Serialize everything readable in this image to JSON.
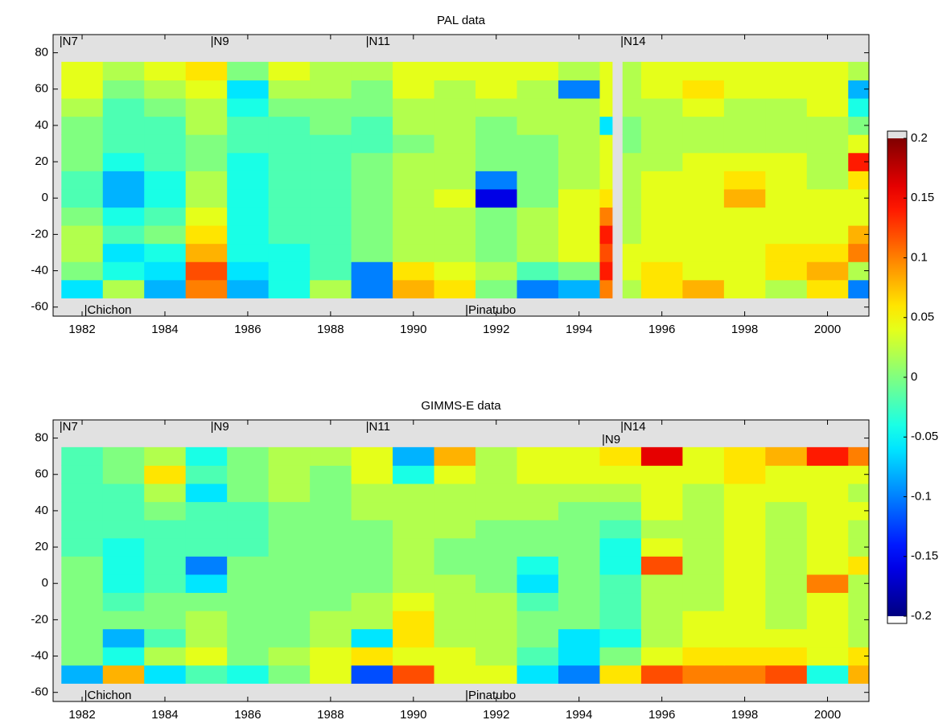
{
  "chart_data": [
    {
      "type": "heatmap",
      "title": "PAL data",
      "x_edges": [
        1981.5,
        1982.5,
        1983.5,
        1984.5,
        1985.5,
        1986.5,
        1987.5,
        1988.5,
        1989.5,
        1990.5,
        1991.5,
        1992.5,
        1993.5,
        1994.5,
        1994.8,
        1995.05,
        1995.5,
        1996.5,
        1997.5,
        1998.5,
        1999.5,
        2000.5,
        2001
      ],
      "y_edges": [
        -55,
        -45,
        -35,
        -25,
        -15,
        -5,
        5,
        15,
        25,
        35,
        45,
        55,
        65,
        75
      ],
      "values": [
        [
          -0.06,
          0.02,
          -0.08,
          0.1,
          -0.08,
          -0.04,
          0.02,
          -0.1,
          0.08,
          0.06,
          0.0,
          -0.1,
          -0.08,
          0.1,
          null,
          0.02,
          0.06,
          0.08,
          0.04,
          0.02,
          0.06,
          -0.1
        ],
        [
          0.0,
          -0.04,
          -0.06,
          0.12,
          -0.06,
          -0.04,
          -0.02,
          -0.1,
          0.06,
          0.04,
          0.02,
          -0.02,
          0.0,
          0.14,
          null,
          0.04,
          0.06,
          0.04,
          0.04,
          0.06,
          0.08,
          0.02
        ],
        [
          0.02,
          -0.06,
          -0.04,
          0.08,
          -0.04,
          -0.04,
          -0.02,
          0.0,
          0.02,
          0.02,
          0.0,
          0.02,
          0.04,
          0.12,
          null,
          0.04,
          0.04,
          0.04,
          0.04,
          0.06,
          0.06,
          0.1
        ],
        [
          0.02,
          -0.02,
          0.0,
          0.06,
          -0.04,
          -0.02,
          -0.02,
          0.0,
          0.02,
          0.02,
          0.0,
          0.02,
          0.04,
          0.14,
          null,
          0.02,
          0.04,
          0.04,
          0.04,
          0.04,
          0.04,
          0.08
        ],
        [
          0.0,
          -0.04,
          -0.02,
          0.04,
          -0.04,
          -0.02,
          -0.02,
          0.0,
          0.02,
          0.02,
          0.0,
          0.02,
          0.04,
          0.1,
          null,
          0.02,
          0.04,
          0.04,
          0.04,
          0.04,
          0.04,
          0.04
        ],
        [
          -0.02,
          -0.08,
          -0.04,
          0.02,
          -0.04,
          -0.02,
          -0.02,
          0.0,
          0.02,
          0.04,
          -0.16,
          0.0,
          0.04,
          0.06,
          null,
          0.02,
          0.04,
          0.04,
          0.08,
          0.04,
          0.04,
          0.04
        ],
        [
          -0.02,
          -0.08,
          -0.04,
          0.02,
          -0.04,
          -0.02,
          -0.02,
          0.0,
          0.02,
          0.02,
          -0.1,
          0.0,
          0.02,
          0.04,
          null,
          0.02,
          0.04,
          0.04,
          0.06,
          0.04,
          0.02,
          0.06
        ],
        [
          0.0,
          -0.04,
          -0.02,
          0.0,
          -0.04,
          -0.02,
          -0.02,
          0.0,
          0.02,
          0.02,
          0.0,
          0.0,
          0.02,
          0.04,
          null,
          0.02,
          0.02,
          0.04,
          0.04,
          0.04,
          0.02,
          0.14
        ],
        [
          0.0,
          -0.02,
          -0.02,
          0.0,
          -0.02,
          -0.02,
          -0.02,
          -0.02,
          0.0,
          0.02,
          0.0,
          0.0,
          0.02,
          0.04,
          null,
          0.0,
          0.02,
          0.02,
          0.02,
          0.02,
          0.02,
          0.04
        ],
        [
          0.0,
          -0.02,
          -0.02,
          0.02,
          -0.02,
          -0.02,
          0.0,
          -0.02,
          0.02,
          0.02,
          0.0,
          0.02,
          0.02,
          -0.06,
          null,
          0.0,
          0.02,
          0.02,
          0.02,
          0.02,
          0.02,
          0.0
        ],
        [
          0.02,
          -0.02,
          0.0,
          0.02,
          -0.04,
          0.0,
          0.0,
          0.0,
          0.02,
          0.02,
          0.02,
          0.02,
          0.02,
          0.04,
          null,
          0.02,
          0.02,
          0.04,
          0.02,
          0.02,
          0.04,
          -0.04
        ],
        [
          0.04,
          0.0,
          0.02,
          0.04,
          -0.06,
          0.02,
          0.02,
          0.0,
          0.04,
          0.02,
          0.04,
          0.02,
          -0.1,
          0.04,
          null,
          0.02,
          0.04,
          0.06,
          0.04,
          0.04,
          0.04,
          -0.08
        ],
        [
          0.04,
          0.02,
          0.04,
          0.06,
          0.0,
          0.04,
          0.02,
          0.02,
          0.04,
          0.04,
          0.04,
          0.04,
          0.02,
          0.04,
          null,
          0.02,
          0.04,
          0.04,
          0.04,
          0.04,
          0.04,
          0.02
        ]
      ],
      "xlim": [
        1981.3,
        2001
      ],
      "ylim": [
        -65,
        90
      ],
      "xticks": [
        1982,
        1984,
        1986,
        1988,
        1990,
        1992,
        1994,
        1996,
        1998,
        2000
      ],
      "yticks": [
        -60,
        -40,
        -20,
        0,
        20,
        40,
        60,
        80
      ],
      "clim": [
        -0.2,
        0.2
      ],
      "cticks": [
        0.2,
        0.15,
        0.1,
        0.05,
        0,
        -0.05,
        -0.1,
        -0.15,
        -0.2
      ],
      "annotations": [
        {
          "text": "|N7",
          "x": 1981.45,
          "y": 86
        },
        {
          "text": "|N9",
          "x": 1985.1,
          "y": 86
        },
        {
          "text": "|N11",
          "x": 1988.85,
          "y": 86
        },
        {
          "text": "|N14",
          "x": 1995.0,
          "y": 86
        },
        {
          "text": "|Chichon",
          "x": 1982.05,
          "y": -62
        },
        {
          "text": "|Pinatubo",
          "x": 1991.25,
          "y": -62
        }
      ]
    },
    {
      "type": "heatmap",
      "title": "GIMMS-E data",
      "x_edges": [
        1981.5,
        1982.5,
        1983.5,
        1984.5,
        1985.5,
        1986.5,
        1987.5,
        1988.5,
        1989.5,
        1990.5,
        1991.5,
        1992.5,
        1993.5,
        1994.5,
        1995.5,
        1996.5,
        1997.5,
        1998.5,
        1999.5,
        2000.5,
        2001
      ],
      "y_edges": [
        -55,
        -45,
        -35,
        -25,
        -15,
        -5,
        5,
        15,
        25,
        35,
        45,
        55,
        65,
        75
      ],
      "values": [
        [
          -0.08,
          0.08,
          -0.06,
          -0.02,
          -0.04,
          0.0,
          0.04,
          -0.12,
          0.12,
          0.04,
          0.04,
          -0.06,
          -0.1,
          0.06,
          0.12,
          0.1,
          0.1,
          0.12,
          -0.04,
          0.08
        ],
        [
          0.0,
          -0.04,
          0.02,
          0.04,
          0.0,
          0.02,
          0.04,
          0.06,
          0.04,
          0.04,
          0.02,
          -0.02,
          -0.06,
          0.0,
          0.04,
          0.06,
          0.06,
          0.06,
          0.04,
          0.06
        ],
        [
          0.0,
          -0.08,
          -0.02,
          0.02,
          0.0,
          0.0,
          0.02,
          -0.06,
          0.06,
          0.02,
          0.02,
          0.0,
          -0.06,
          -0.04,
          0.02,
          0.04,
          0.04,
          0.04,
          0.04,
          0.02
        ],
        [
          0.0,
          0.0,
          0.0,
          0.02,
          0.0,
          0.0,
          0.02,
          0.02,
          0.06,
          0.02,
          0.02,
          0.0,
          0.0,
          -0.02,
          0.02,
          0.04,
          0.04,
          0.02,
          0.04,
          0.02
        ],
        [
          0.0,
          -0.02,
          0.0,
          0.0,
          0.0,
          0.0,
          0.0,
          0.02,
          0.04,
          0.02,
          0.02,
          -0.02,
          0.0,
          -0.02,
          0.02,
          0.02,
          0.04,
          0.02,
          0.04,
          0.02
        ],
        [
          0.0,
          -0.04,
          -0.02,
          -0.06,
          0.0,
          0.0,
          0.0,
          0.0,
          0.02,
          0.02,
          0.0,
          -0.06,
          0.0,
          -0.02,
          0.02,
          0.02,
          0.04,
          0.02,
          0.1,
          0.02
        ],
        [
          0.0,
          -0.04,
          -0.02,
          -0.1,
          0.0,
          0.0,
          0.0,
          0.0,
          0.02,
          0.0,
          0.0,
          -0.04,
          0.0,
          -0.04,
          0.12,
          0.02,
          0.04,
          0.02,
          0.04,
          0.06
        ],
        [
          -0.02,
          -0.04,
          -0.02,
          -0.02,
          -0.02,
          0.0,
          0.0,
          0.0,
          0.02,
          0.0,
          0.0,
          0.0,
          0.0,
          -0.04,
          0.04,
          0.02,
          0.04,
          0.02,
          0.04,
          0.02
        ],
        [
          -0.02,
          -0.02,
          -0.02,
          -0.02,
          -0.02,
          0.0,
          0.0,
          0.0,
          0.02,
          0.02,
          0.0,
          0.0,
          0.0,
          -0.02,
          0.02,
          0.02,
          0.04,
          0.02,
          0.04,
          0.02
        ],
        [
          -0.02,
          -0.02,
          0.0,
          -0.02,
          -0.02,
          0.0,
          0.0,
          0.02,
          0.02,
          0.02,
          0.02,
          0.02,
          0.0,
          0.0,
          0.04,
          0.02,
          0.04,
          0.02,
          0.04,
          0.04
        ],
        [
          -0.02,
          -0.02,
          0.02,
          -0.06,
          0.0,
          0.02,
          0.0,
          0.02,
          0.02,
          0.02,
          0.02,
          0.02,
          0.02,
          0.02,
          0.04,
          0.02,
          0.04,
          0.04,
          0.04,
          0.02
        ],
        [
          -0.02,
          0.0,
          0.06,
          -0.02,
          0.0,
          0.02,
          0.0,
          0.04,
          -0.04,
          0.04,
          0.02,
          0.04,
          0.04,
          0.04,
          0.04,
          0.04,
          0.06,
          0.04,
          0.04,
          0.04
        ],
        [
          -0.02,
          0.0,
          0.02,
          -0.04,
          0.0,
          0.02,
          0.02,
          0.04,
          -0.08,
          0.08,
          0.02,
          0.04,
          0.04,
          0.06,
          0.16,
          0.04,
          0.06,
          0.08,
          0.14,
          0.1
        ]
      ],
      "xlim": [
        1981.3,
        2001
      ],
      "ylim": [
        -65,
        90
      ],
      "xticks": [
        1982,
        1984,
        1986,
        1988,
        1990,
        1992,
        1994,
        1996,
        1998,
        2000
      ],
      "yticks": [
        -60,
        -40,
        -20,
        0,
        20,
        40,
        60,
        80
      ],
      "clim": [
        -0.2,
        0.2
      ],
      "annotations": [
        {
          "text": "|N7",
          "x": 1981.45,
          "y": 86
        },
        {
          "text": "|N9",
          "x": 1985.1,
          "y": 86
        },
        {
          "text": "|N11",
          "x": 1988.85,
          "y": 86
        },
        {
          "text": "|N14",
          "x": 1995.0,
          "y": 86
        },
        {
          "text": "|N9",
          "x": 1994.55,
          "y": 79
        },
        {
          "text": "|Chichon",
          "x": 1982.05,
          "y": -62
        },
        {
          "text": "|Pinatubo",
          "x": 1991.25,
          "y": -62
        }
      ]
    }
  ]
}
